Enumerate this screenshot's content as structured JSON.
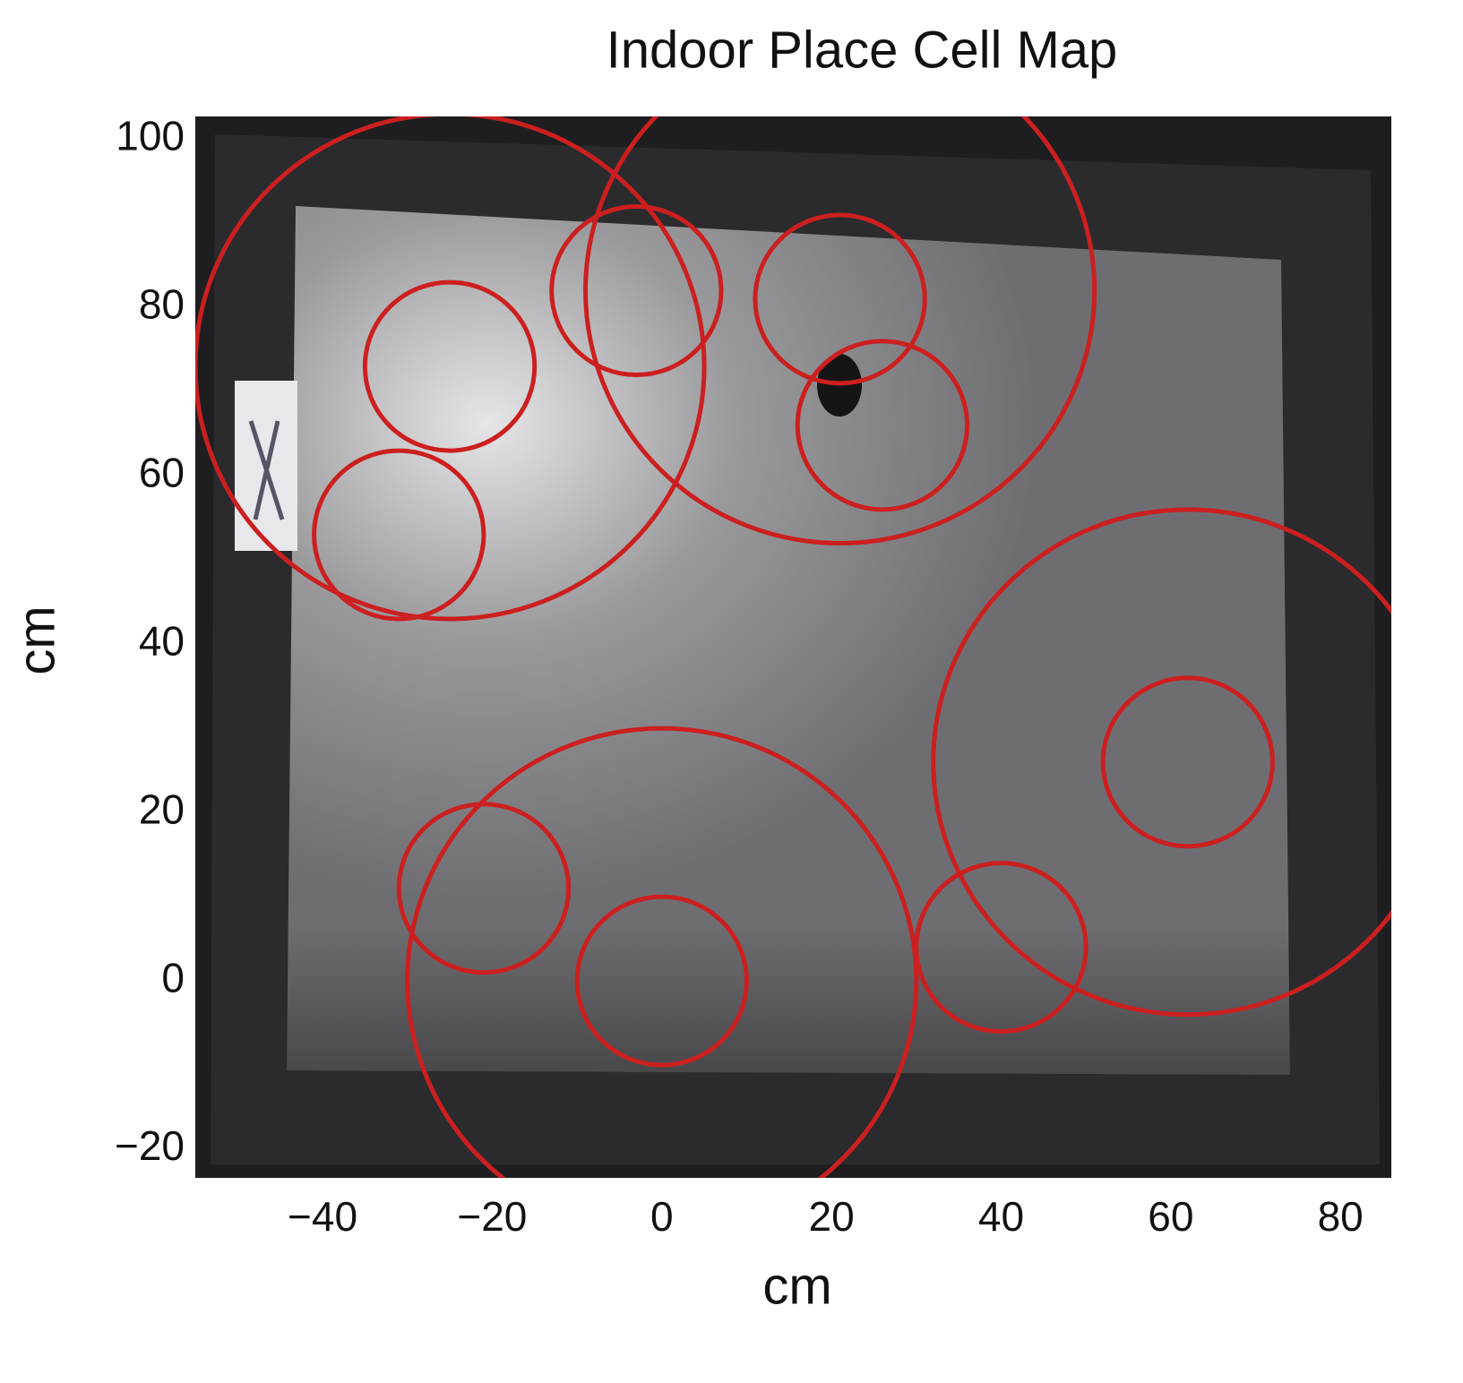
{
  "chart_data": {
    "type": "bubble",
    "title": "Indoor Place Cell Map",
    "x_label": "cm",
    "y_label": "cm",
    "x": [
      -25,
      21,
      0,
      62,
      -25,
      -31,
      -3,
      21,
      26,
      62,
      40,
      -21,
      0
    ],
    "values": [
      73,
      82,
      0,
      26,
      73,
      53,
      82,
      81,
      66,
      26,
      4,
      11,
      0
    ],
    "radius": [
      30,
      30,
      30,
      30,
      10,
      10,
      10,
      10,
      10,
      10,
      10,
      10,
      10
    ],
    "color": "#cc1f1f",
    "xlim": [
      -55,
      86
    ],
    "ylim": [
      -23.4,
      102.7
    ],
    "xticks": [
      {
        "value": -40,
        "label": "−40"
      },
      {
        "value": -20,
        "label": "−20"
      },
      0,
      20,
      40,
      60,
      80
    ],
    "yticks": [
      {
        "value": -20,
        "label": "−20"
      },
      0,
      20,
      40,
      60,
      80,
      100
    ]
  }
}
